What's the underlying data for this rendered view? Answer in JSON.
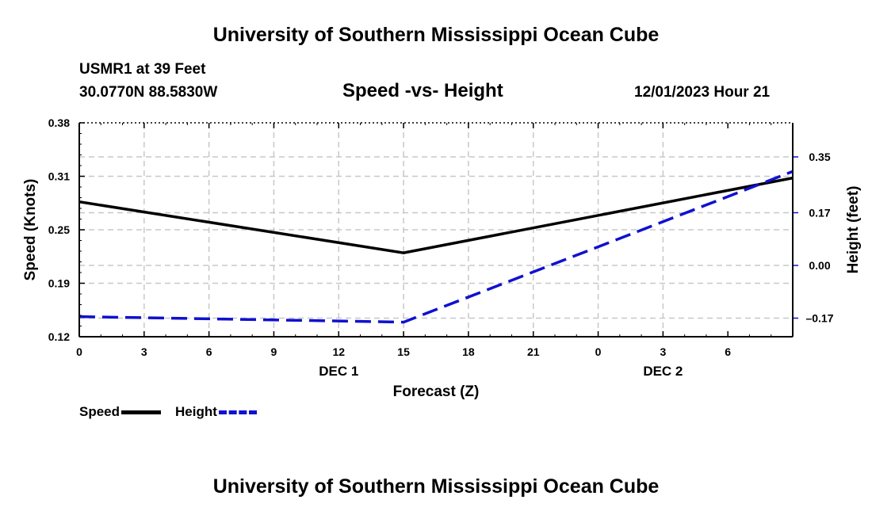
{
  "header": {
    "title_top": "University of Southern Mississippi Ocean Cube",
    "station": "USMR1 at 39 Feet",
    "coords": "30.0770N  88.5830W",
    "subtitle": "Speed -vs- Height",
    "datetime": "12/01/2023 Hour 21",
    "title_bottom": "University of Southern Mississippi Ocean Cube"
  },
  "legend": {
    "speed": "Speed",
    "height": "Height"
  },
  "colors": {
    "speed": "#000000",
    "height": "#1010d0",
    "grid": "#c8c8c8"
  },
  "chart_data": {
    "type": "line",
    "title": "Speed -vs- Height",
    "xlabel": "Forecast (Z)",
    "ylabel": "Speed (Knots)",
    "y2label": "Height (feet)",
    "x_hours": [
      0,
      33
    ],
    "x_ticks": [
      {
        "h": 0,
        "label": "0"
      },
      {
        "h": 3,
        "label": "3"
      },
      {
        "h": 6,
        "label": "6"
      },
      {
        "h": 9,
        "label": "9"
      },
      {
        "h": 12,
        "label": "12"
      },
      {
        "h": 15,
        "label": "15"
      },
      {
        "h": 18,
        "label": "18"
      },
      {
        "h": 21,
        "label": "21"
      },
      {
        "h": 24,
        "label": "0"
      },
      {
        "h": 27,
        "label": "3"
      },
      {
        "h": 30,
        "label": "6"
      }
    ],
    "day_labels": [
      {
        "h": 12,
        "label": "DEC 1"
      },
      {
        "h": 27,
        "label": "DEC 2"
      }
    ],
    "ylim": [
      0.12,
      0.38
    ],
    "y_ticks": [
      "0.38",
      "0.31",
      "0.25",
      "0.19",
      "0.12"
    ],
    "y2lim": [
      -0.23,
      0.46
    ],
    "y2_ticks": [
      "0.35",
      "0.17",
      "0.00",
      "-0.17"
    ],
    "series": [
      {
        "name": "Speed",
        "axis": "left",
        "style": "solid",
        "x": [
          0,
          15,
          33
        ],
        "values": [
          0.284,
          0.222,
          0.313
        ]
      },
      {
        "name": "Height",
        "axis": "right",
        "style": "dashed",
        "x": [
          0,
          15,
          33
        ],
        "values": [
          -0.165,
          -0.183,
          0.303
        ]
      }
    ]
  }
}
